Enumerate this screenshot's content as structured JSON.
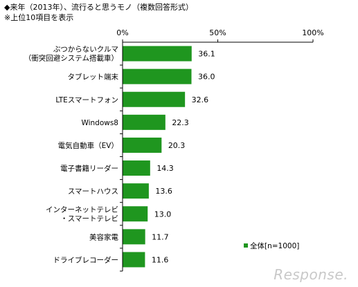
{
  "title_line1": "◆来年（2013年）、流行ると思うモノ（複数回答形式）",
  "title_line2": "※上位10項目を表示",
  "watermark": "Response.",
  "colors": {
    "bar": "#1f961f",
    "axis": "#000000"
  },
  "chart_data": {
    "type": "bar",
    "orientation": "horizontal",
    "categories": [
      [
        "ぶつからないクルマ",
        "（衝突回避システム搭載車）"
      ],
      [
        "タブレット端末"
      ],
      [
        "LTEスマートフォン"
      ],
      [
        "Windows8"
      ],
      [
        "電気自動車（EV）"
      ],
      [
        "電子書籍リーダー"
      ],
      [
        "スマートハウス"
      ],
      [
        "インターネットテレビ",
        "・スマートテレビ"
      ],
      [
        "美容家電"
      ],
      [
        "ドライブレコーダー"
      ]
    ],
    "series": [
      {
        "name": "全体[n=1000]",
        "values": [
          36.1,
          36.0,
          32.6,
          22.3,
          20.3,
          14.3,
          13.6,
          13.0,
          11.7,
          11.6
        ]
      }
    ],
    "value_labels": [
      "36.1",
      "36.0",
      "32.6",
      "22.3",
      "20.3",
      "14.3",
      "13.6",
      "13.0",
      "11.7",
      "11.6"
    ],
    "xticks": [
      "0%",
      "50%",
      "100%"
    ],
    "xlim": [
      0,
      100
    ],
    "legend_position": "bottom-right",
    "grid": false
  }
}
